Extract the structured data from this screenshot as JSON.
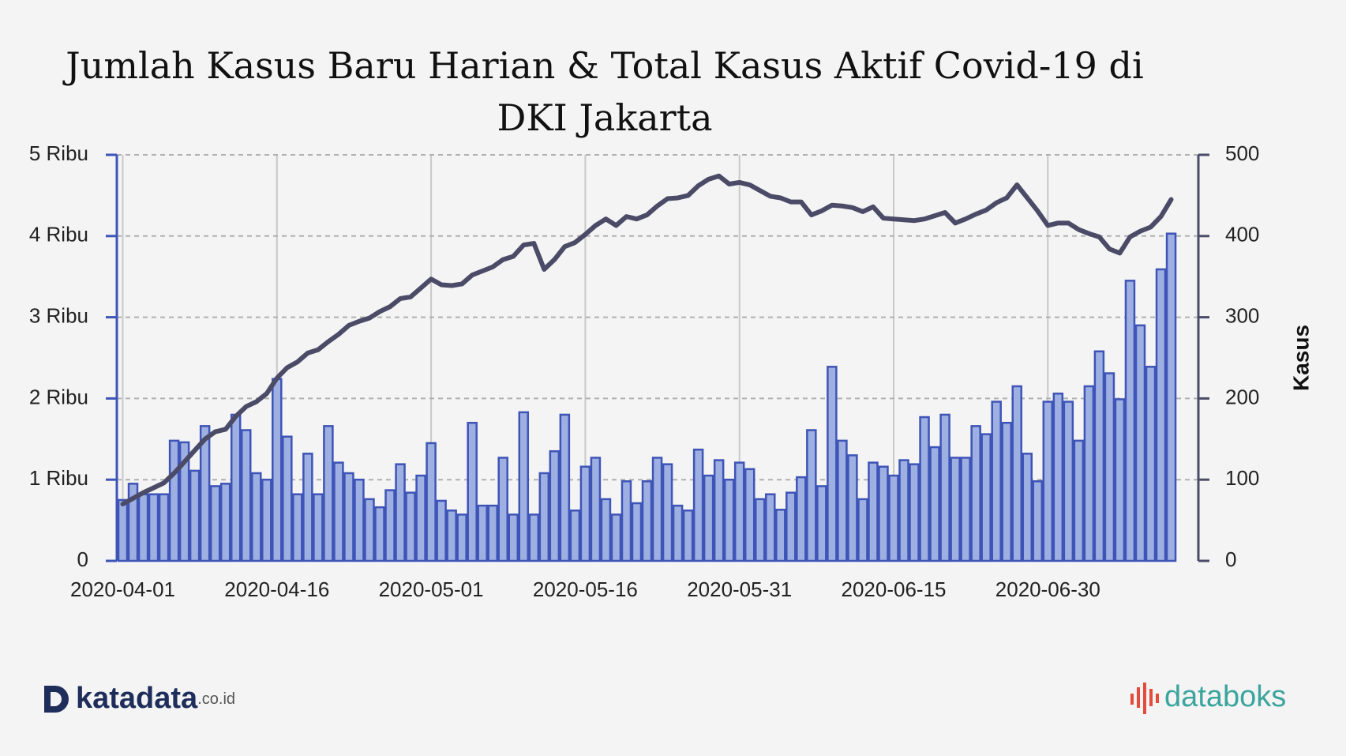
{
  "chart_data": {
    "type": "bar-line",
    "title": "Jumlah Kasus Baru Harian & Total Kasus Aktif Covid-19 di DKI Jakarta",
    "y2_label": "Kasus",
    "x": [
      "2020-04-01",
      "2020-04-02",
      "2020-04-03",
      "2020-04-04",
      "2020-04-05",
      "2020-04-06",
      "2020-04-07",
      "2020-04-08",
      "2020-04-09",
      "2020-04-10",
      "2020-04-11",
      "2020-04-12",
      "2020-04-13",
      "2020-04-14",
      "2020-04-15",
      "2020-04-16",
      "2020-04-17",
      "2020-04-18",
      "2020-04-19",
      "2020-04-20",
      "2020-04-21",
      "2020-04-22",
      "2020-04-23",
      "2020-04-24",
      "2020-04-25",
      "2020-04-26",
      "2020-04-27",
      "2020-04-28",
      "2020-04-29",
      "2020-04-30",
      "2020-05-01",
      "2020-05-02",
      "2020-05-03",
      "2020-05-04",
      "2020-05-05",
      "2020-05-06",
      "2020-05-07",
      "2020-05-08",
      "2020-05-09",
      "2020-05-10",
      "2020-05-11",
      "2020-05-12",
      "2020-05-13",
      "2020-05-14",
      "2020-05-15",
      "2020-05-16",
      "2020-05-17",
      "2020-05-18",
      "2020-05-19",
      "2020-05-20",
      "2020-05-21",
      "2020-05-22",
      "2020-05-23",
      "2020-05-24",
      "2020-05-25",
      "2020-05-26",
      "2020-05-27",
      "2020-05-28",
      "2020-05-29",
      "2020-05-30",
      "2020-05-31",
      "2020-06-01",
      "2020-06-02",
      "2020-06-03",
      "2020-06-04",
      "2020-06-05",
      "2020-06-06",
      "2020-06-07",
      "2020-06-08",
      "2020-06-09",
      "2020-06-10",
      "2020-06-11",
      "2020-06-12",
      "2020-06-13",
      "2020-06-14",
      "2020-06-15",
      "2020-06-16",
      "2020-06-17",
      "2020-06-18",
      "2020-06-19",
      "2020-06-20",
      "2020-06-21",
      "2020-06-22",
      "2020-06-23",
      "2020-06-24",
      "2020-06-25",
      "2020-06-26",
      "2020-06-27",
      "2020-06-28",
      "2020-06-29",
      "2020-06-30",
      "2020-07-01",
      "2020-07-02",
      "2020-07-03",
      "2020-07-04",
      "2020-07-05",
      "2020-07-06",
      "2020-07-07",
      "2020-07-08",
      "2020-07-09",
      "2020-07-10",
      "2020-07-11",
      "2020-07-12"
    ],
    "xticks": [
      "2020-04-01",
      "2020-04-16",
      "2020-05-01",
      "2020-05-16",
      "2020-05-31",
      "2020-06-15",
      "2020-06-30"
    ],
    "series": [
      {
        "type": "line",
        "color": "#4b4b68",
        "values": [
          0.7,
          0.77,
          0.84,
          0.9,
          0.96,
          1.08,
          1.22,
          1.36,
          1.5,
          1.59,
          1.62,
          1.78,
          1.9,
          1.96,
          2.06,
          2.25,
          2.38,
          2.45,
          2.56,
          2.6,
          2.7,
          2.79,
          2.9,
          2.95,
          2.99,
          3.07,
          3.13,
          3.23,
          3.25,
          3.36,
          3.47,
          3.4,
          3.39,
          3.41,
          3.52,
          3.57,
          3.62,
          3.71,
          3.75,
          3.89,
          3.91,
          3.59,
          3.71,
          3.87,
          3.92,
          4.02,
          4.13,
          4.21,
          4.13,
          4.24,
          4.21,
          4.26,
          4.37,
          4.46,
          4.47,
          4.5,
          4.62,
          4.7,
          4.74,
          4.64,
          4.66,
          4.63,
          4.56,
          4.49,
          4.47,
          4.42,
          4.42,
          4.26,
          4.31,
          4.38,
          4.37,
          4.35,
          4.3,
          4.36,
          4.22,
          4.21,
          4.2,
          4.19,
          4.21,
          4.25,
          4.29,
          4.16,
          4.21,
          4.27,
          4.32,
          4.41,
          4.47,
          4.63,
          4.47,
          4.31,
          4.13,
          4.16,
          4.16,
          4.08,
          4.03,
          3.99,
          3.84,
          3.79,
          3.99,
          4.06,
          4.11,
          4.24,
          4.45
        ]
      },
      {
        "type": "bar",
        "axis": "y2",
        "color": "#9eafe2",
        "edge": "#3e54b7",
        "values": [
          75,
          95,
          82,
          82,
          82,
          148,
          146,
          111,
          166,
          92,
          95,
          180,
          161,
          108,
          100,
          224,
          153,
          82,
          132,
          82,
          166,
          121,
          108,
          100,
          76,
          66,
          87,
          119,
          84,
          105,
          145,
          74,
          62,
          57,
          170,
          68,
          68,
          127,
          57,
          183,
          57,
          108,
          135,
          180,
          62,
          116,
          127,
          76,
          57,
          98,
          71,
          98,
          127,
          119,
          68,
          62,
          137,
          105,
          124,
          100,
          121,
          113,
          76,
          82,
          63,
          84,
          103,
          161,
          92,
          239,
          148,
          130,
          76,
          121,
          116,
          105,
          124,
          119,
          177,
          140,
          180,
          127,
          127,
          166,
          156,
          196,
          170,
          215,
          132,
          98,
          196,
          206,
          196,
          148,
          215,
          258,
          231,
          199,
          345,
          290,
          239,
          359,
          403
        ]
      }
    ],
    "ylim": [
      0,
      5
    ],
    "yticks": [
      0,
      {
        "value": 1,
        "label": "1 Ribu"
      },
      {
        "value": 2,
        "label": "2 Ribu"
      },
      {
        "value": 3,
        "label": "3 Ribu"
      },
      {
        "value": 4,
        "label": "4 Ribu"
      },
      {
        "value": 5,
        "label": "5 Ribu"
      }
    ],
    "y2lim": [
      0,
      500
    ],
    "y2ticks": [
      0,
      100,
      200,
      300,
      400,
      500
    ],
    "grid": true
  },
  "footer": {
    "left": "katadata",
    "left_suffix": ".co.id",
    "right": "databoks"
  }
}
